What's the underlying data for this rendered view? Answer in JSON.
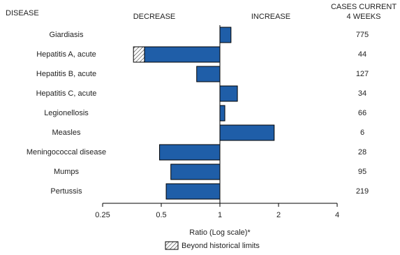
{
  "chart_data": {
    "type": "bar",
    "orientation": "horizontal",
    "disease_header": "DISEASE",
    "decrease_label": "DECREASE",
    "increase_label": "INCREASE",
    "cases_header": [
      "CASES CURRENT",
      "4 WEEKS"
    ],
    "categories": [
      "Giardiasis",
      "Hepatitis A, acute",
      "Hepatitis B, acute",
      "Hepatitis C, acute",
      "Legionellosis",
      "Measles",
      "Meningococcal disease",
      "Mumps",
      "Pertussis"
    ],
    "values": [
      1.14,
      0.36,
      0.76,
      1.23,
      1.06,
      1.9,
      0.49,
      0.56,
      0.53
    ],
    "beyond_limits": [
      null,
      0.41,
      null,
      null,
      null,
      null,
      null,
      null,
      null
    ],
    "cases": [
      775,
      44,
      127,
      34,
      66,
      6,
      28,
      95,
      219
    ],
    "color": "#1f5ea8",
    "xlabel": "Ratio (Log scale)*",
    "xlim": [
      0.25,
      4
    ],
    "xticks": [
      0.25,
      0.5,
      1,
      2,
      4
    ],
    "log_scale": true,
    "baseline": 1,
    "legend": "Beyond historical limits"
  }
}
